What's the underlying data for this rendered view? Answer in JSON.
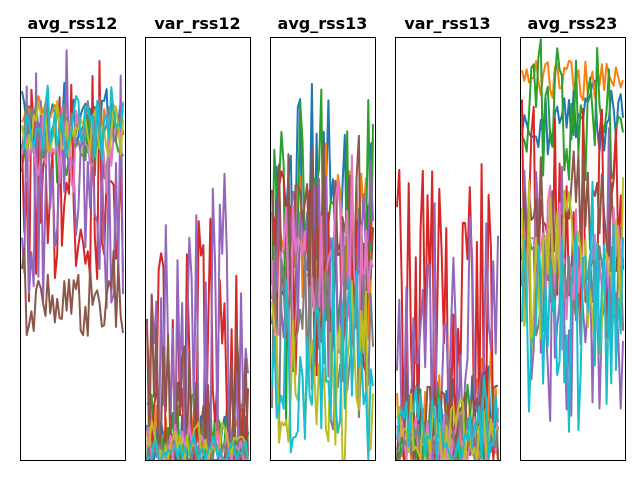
{
  "colors": [
    "#1f77b4",
    "#ff7f0e",
    "#2ca02c",
    "#d62728",
    "#9467bd",
    "#8c564b",
    "#e377c2",
    "#7f7f7f",
    "#bcbd22",
    "#17becf"
  ],
  "chart_data": [
    {
      "type": "line",
      "title": "avg_rss12",
      "xlabel": "",
      "ylabel": "",
      "ylim": [
        0,
        1
      ],
      "grid": false,
      "series": [
        {
          "color": "#1f77b4",
          "level": 0.79,
          "noise": 0.05,
          "points": 44
        },
        {
          "color": "#ff7f0e",
          "level": 0.8,
          "noise": 0.03,
          "points": 44
        },
        {
          "color": "#2ca02c",
          "level": 0.75,
          "noise": 0.05,
          "points": 44
        },
        {
          "color": "#d62728",
          "level": 0.65,
          "noise": 0.15,
          "points": 44
        },
        {
          "color": "#9467bd",
          "level": 0.63,
          "noise": 0.18,
          "points": 44
        },
        {
          "color": "#8c564b",
          "level": 0.38,
          "noise": 0.07,
          "points": 44
        },
        {
          "color": "#e377c2",
          "level": 0.74,
          "noise": 0.06,
          "points": 44
        },
        {
          "color": "#7f7f7f",
          "level": 0.78,
          "noise": 0.04,
          "points": 44
        },
        {
          "color": "#bcbd22",
          "level": 0.78,
          "noise": 0.04,
          "points": 44
        },
        {
          "color": "#17becf",
          "level": 0.8,
          "noise": 0.05,
          "points": 44
        }
      ]
    },
    {
      "type": "line",
      "title": "var_rss12",
      "xlabel": "",
      "ylabel": "",
      "ylim": [
        0,
        1
      ],
      "grid": false,
      "series": [
        {
          "color": "#1f77b4",
          "level": 0.04,
          "noise": 0.04,
          "points": 44
        },
        {
          "color": "#ff7f0e",
          "level": 0.05,
          "noise": 0.05,
          "points": 44
        },
        {
          "color": "#2ca02c",
          "level": 0.05,
          "noise": 0.06,
          "points": 44
        },
        {
          "color": "#d62728",
          "level": 0.2,
          "noise": 0.22,
          "points": 44
        },
        {
          "color": "#9467bd",
          "level": 0.28,
          "noise": 0.26,
          "points": 44
        },
        {
          "color": "#8c564b",
          "level": 0.12,
          "noise": 0.14,
          "points": 44
        },
        {
          "color": "#e377c2",
          "level": 0.03,
          "noise": 0.03,
          "points": 44
        },
        {
          "color": "#7f7f7f",
          "level": 0.02,
          "noise": 0.02,
          "points": 44
        },
        {
          "color": "#bcbd22",
          "level": 0.03,
          "noise": 0.03,
          "points": 44
        },
        {
          "color": "#17becf",
          "level": 0.02,
          "noise": 0.02,
          "points": 44
        }
      ]
    },
    {
      "type": "line",
      "title": "avg_rss13",
      "xlabel": "",
      "ylabel": "",
      "ylim": [
        0,
        1
      ],
      "grid": false,
      "series": [
        {
          "color": "#1f77b4",
          "level": 0.55,
          "noise": 0.16,
          "points": 44
        },
        {
          "color": "#ff7f0e",
          "level": 0.52,
          "noise": 0.14,
          "points": 44
        },
        {
          "color": "#2ca02c",
          "level": 0.55,
          "noise": 0.22,
          "points": 44
        },
        {
          "color": "#d62728",
          "level": 0.45,
          "noise": 0.16,
          "points": 44
        },
        {
          "color": "#9467bd",
          "level": 0.45,
          "noise": 0.16,
          "points": 44
        },
        {
          "color": "#8c564b",
          "level": 0.5,
          "noise": 0.15,
          "points": 44
        },
        {
          "color": "#e377c2",
          "level": 0.45,
          "noise": 0.14,
          "points": 44
        },
        {
          "color": "#7f7f7f",
          "level": 0.3,
          "noise": 0.14,
          "points": 44
        },
        {
          "color": "#bcbd22",
          "level": 0.22,
          "noise": 0.15,
          "points": 44
        },
        {
          "color": "#17becf",
          "level": 0.25,
          "noise": 0.16,
          "points": 44
        }
      ]
    },
    {
      "type": "line",
      "title": "var_rss13",
      "xlabel": "",
      "ylabel": "",
      "ylim": [
        0,
        1
      ],
      "grid": false,
      "series": [
        {
          "color": "#1f77b4",
          "level": 0.1,
          "noise": 0.08,
          "points": 44
        },
        {
          "color": "#ff7f0e",
          "level": 0.12,
          "noise": 0.1,
          "points": 44
        },
        {
          "color": "#2ca02c",
          "level": 0.08,
          "noise": 0.08,
          "points": 44
        },
        {
          "color": "#d62728",
          "level": 0.28,
          "noise": 0.24,
          "points": 44
        },
        {
          "color": "#9467bd",
          "level": 0.25,
          "noise": 0.18,
          "points": 44
        },
        {
          "color": "#8c564b",
          "level": 0.1,
          "noise": 0.08,
          "points": 44
        },
        {
          "color": "#e377c2",
          "level": 0.06,
          "noise": 0.05,
          "points": 44
        },
        {
          "color": "#7f7f7f",
          "level": 0.05,
          "noise": 0.04,
          "points": 44
        },
        {
          "color": "#bcbd22",
          "level": 0.06,
          "noise": 0.05,
          "points": 44
        },
        {
          "color": "#17becf",
          "level": 0.07,
          "noise": 0.06,
          "points": 44
        }
      ]
    },
    {
      "type": "line",
      "title": "avg_rss23",
      "xlabel": "",
      "ylabel": "",
      "ylim": [
        0,
        1
      ],
      "grid": false,
      "series": [
        {
          "color": "#1f77b4",
          "level": 0.8,
          "noise": 0.05,
          "points": 44
        },
        {
          "color": "#ff7f0e",
          "level": 0.9,
          "noise": 0.03,
          "points": 44
        },
        {
          "color": "#2ca02c",
          "level": 0.82,
          "noise": 0.1,
          "points": 44
        },
        {
          "color": "#d62728",
          "level": 0.55,
          "noise": 0.16,
          "points": 44
        },
        {
          "color": "#9467bd",
          "level": 0.4,
          "noise": 0.18,
          "points": 44
        },
        {
          "color": "#8c564b",
          "level": 0.58,
          "noise": 0.08,
          "points": 44
        },
        {
          "color": "#e377c2",
          "level": 0.45,
          "noise": 0.1,
          "points": 44
        },
        {
          "color": "#7f7f7f",
          "level": 0.4,
          "noise": 0.08,
          "points": 44
        },
        {
          "color": "#bcbd22",
          "level": 0.45,
          "noise": 0.12,
          "points": 44
        },
        {
          "color": "#17becf",
          "level": 0.35,
          "noise": 0.15,
          "points": 44
        }
      ]
    }
  ]
}
